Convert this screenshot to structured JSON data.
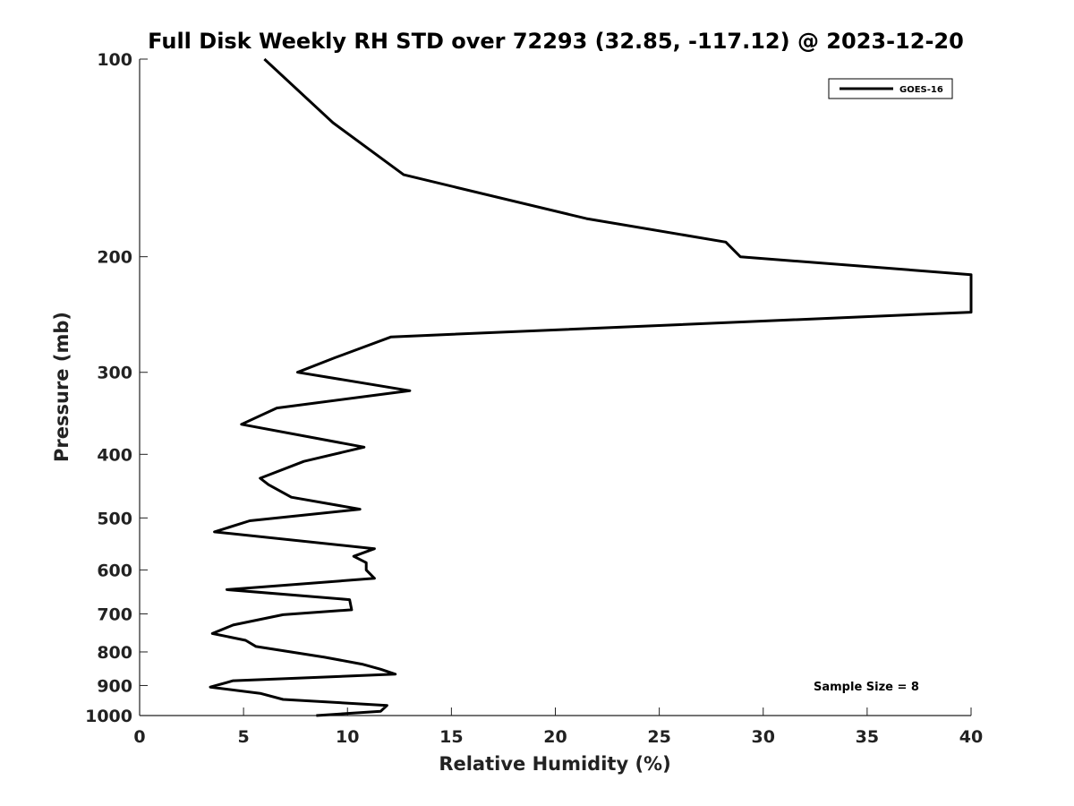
{
  "chart_data": {
    "type": "line",
    "title": "Full Disk Weekly RH STD over 72293 (32.85, -117.12) @ 2023-12-20",
    "xlabel": "Relative Humidity (%)",
    "ylabel": "Pressure (mb)",
    "xlim": [
      0,
      40
    ],
    "ylim": [
      100,
      1000
    ],
    "y_scale": "log",
    "y_inverted": true,
    "grid": false,
    "legend_position": "top-right",
    "x_ticks": [
      0,
      5,
      10,
      15,
      20,
      25,
      30,
      35,
      40
    ],
    "y_ticks": [
      100,
      200,
      300,
      400,
      500,
      600,
      700,
      800,
      900,
      1000
    ],
    "series": [
      {
        "name": "GOES-16",
        "color": "#000000",
        "points": [
          [
            6.0,
            100
          ],
          [
            9.3,
            125
          ],
          [
            12.7,
            150
          ],
          [
            21.5,
            175
          ],
          [
            28.2,
            190
          ],
          [
            28.9,
            200
          ],
          [
            40.0,
            213
          ],
          [
            40.0,
            243
          ],
          [
            12.1,
            265
          ],
          [
            9.4,
            285
          ],
          [
            7.6,
            300
          ],
          [
            13.0,
            320
          ],
          [
            6.6,
            340
          ],
          [
            4.9,
            360
          ],
          [
            10.8,
            390
          ],
          [
            7.9,
            410
          ],
          [
            5.8,
            435
          ],
          [
            6.2,
            445
          ],
          [
            7.3,
            465
          ],
          [
            10.6,
            485
          ],
          [
            5.3,
            505
          ],
          [
            3.6,
            525
          ],
          [
            11.3,
            557
          ],
          [
            10.3,
            572
          ],
          [
            10.9,
            585
          ],
          [
            10.9,
            600
          ],
          [
            11.3,
            618
          ],
          [
            4.2,
            643
          ],
          [
            10.1,
            666
          ],
          [
            10.2,
            690
          ],
          [
            6.9,
            702
          ],
          [
            4.5,
            728
          ],
          [
            3.5,
            750
          ],
          [
            5.1,
            768
          ],
          [
            5.6,
            785
          ],
          [
            8.9,
            815
          ],
          [
            10.7,
            835
          ],
          [
            11.6,
            850
          ],
          [
            12.3,
            865
          ],
          [
            4.5,
            885
          ],
          [
            3.4,
            905
          ],
          [
            5.8,
            925
          ],
          [
            6.9,
            945
          ],
          [
            11.9,
            965
          ],
          [
            11.6,
            985
          ],
          [
            8.5,
            1000
          ]
        ]
      }
    ],
    "legend": [
      "GOES-16"
    ],
    "annotation": "Sample Size = 8"
  }
}
